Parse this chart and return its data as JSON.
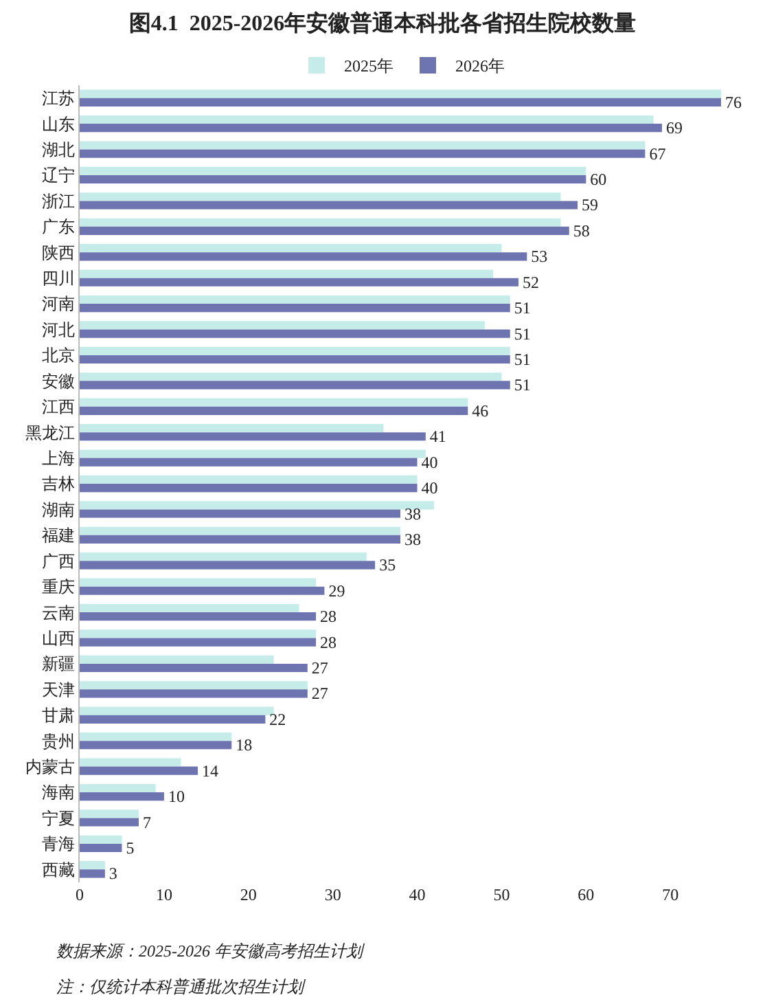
{
  "chart_data": {
    "type": "bar",
    "orientation": "horizontal",
    "title": "图4.1  2025-2026年安徽普通本科批各省招生院校数量",
    "categories": [
      "江苏",
      "山东",
      "湖北",
      "辽宁",
      "浙江",
      "广东",
      "陕西",
      "四川",
      "河南",
      "河北",
      "北京",
      "安徽",
      "江西",
      "黑龙江",
      "上海",
      "吉林",
      "湖南",
      "福建",
      "广西",
      "重庆",
      "云南",
      "山西",
      "新疆",
      "天津",
      "甘肃",
      "贵州",
      "内蒙古",
      "海南",
      "宁夏",
      "青海",
      "西藏"
    ],
    "series": [
      {
        "name": "2025年",
        "color": "#c5ece8",
        "values": [
          76,
          68,
          67,
          60,
          57,
          57,
          50,
          49,
          51,
          48,
          51,
          50,
          46,
          36,
          41,
          40,
          42,
          38,
          34,
          28,
          26,
          28,
          23,
          27,
          23,
          18,
          12,
          9,
          7,
          5,
          3
        ]
      },
      {
        "name": "2026年",
        "color": "#6e74b0",
        "values": [
          76,
          69,
          67,
          60,
          59,
          58,
          53,
          52,
          51,
          51,
          51,
          51,
          46,
          41,
          40,
          40,
          38,
          38,
          35,
          29,
          28,
          28,
          27,
          27,
          22,
          18,
          14,
          10,
          7,
          5,
          3
        ],
        "value_labels": [
          "76",
          "69",
          "67",
          "60",
          "59",
          "58",
          "53",
          "52",
          "51",
          "51",
          "51",
          "51",
          "46",
          "41",
          "40",
          "40",
          "38",
          "38",
          "35",
          "29",
          "28",
          "28",
          "27",
          "27",
          "22",
          "18",
          "14",
          "10",
          "7",
          "5",
          "3"
        ]
      }
    ],
    "xlim": [
      0,
      76
    ],
    "xticks": [
      0,
      10,
      20,
      30,
      40,
      50,
      60,
      70
    ],
    "legend": "top",
    "annotations": [
      "数据来源：2025-2026 年安徽高考招生计划",
      "注：仅统计本科普通批次招生计划"
    ]
  }
}
